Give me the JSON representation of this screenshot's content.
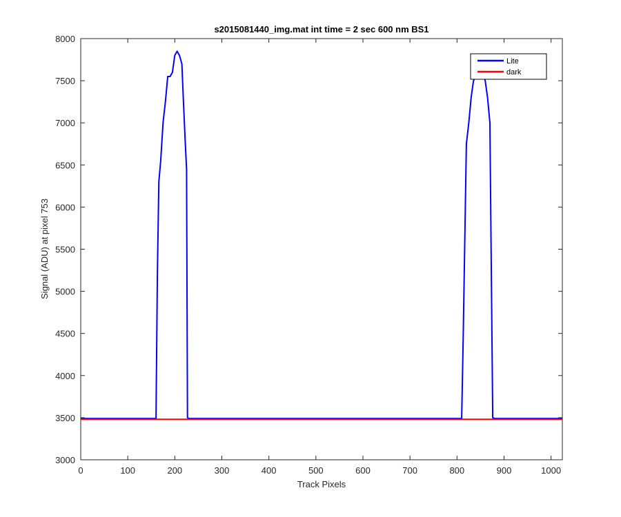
{
  "chart_data": {
    "type": "line",
    "title": "s2015081440_img.mat int time = 2 sec  600 nm BS1",
    "xlabel": "Track Pixels",
    "ylabel": "Signal (ADU) at pixel 753",
    "xlim": [
      0,
      1024
    ],
    "ylim": [
      3000,
      8000
    ],
    "xticks": [
      0,
      100,
      200,
      300,
      400,
      500,
      600,
      700,
      800,
      900,
      1000
    ],
    "yticks": [
      3000,
      3500,
      4000,
      4500,
      5000,
      5500,
      6000,
      6500,
      7000,
      7500,
      8000
    ],
    "grid": false,
    "legend": "top-right",
    "series": [
      {
        "name": "Lite",
        "color": "#0000ff",
        "x": [
          0,
          100,
          160,
          163,
          166,
          170,
          175,
          180,
          185,
          190,
          195,
          200,
          205,
          210,
          215,
          218,
          222,
          225,
          227,
          230,
          300,
          400,
          500,
          600,
          700,
          800,
          810,
          813,
          816,
          820,
          825,
          830,
          835,
          840,
          845,
          850,
          855,
          860,
          865,
          870,
          873,
          876,
          880,
          900,
          1000,
          1024
        ],
        "y": [
          3490,
          3490,
          3490,
          5200,
          6300,
          6550,
          7000,
          7250,
          7550,
          7550,
          7600,
          7800,
          7850,
          7800,
          7700,
          7300,
          6800,
          6450,
          3500,
          3490,
          3490,
          3490,
          3490,
          3490,
          3490,
          3490,
          3490,
          4400,
          5400,
          6750,
          7000,
          7300,
          7500,
          7550,
          7600,
          7650,
          7600,
          7500,
          7300,
          7000,
          5200,
          3500,
          3490,
          3490,
          3490,
          3490
        ]
      },
      {
        "name": "dark",
        "color": "#ff0000",
        "x": [
          0,
          1024
        ],
        "y": [
          3480,
          3480
        ]
      }
    ]
  }
}
